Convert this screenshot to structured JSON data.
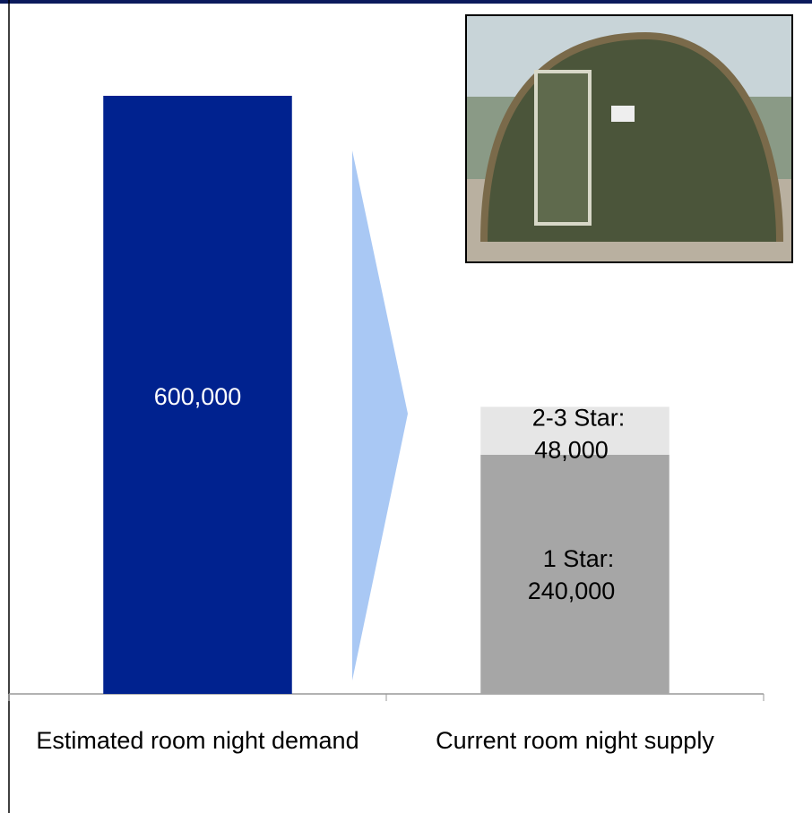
{
  "chart_data": {
    "type": "stacked-bar",
    "categories": [
      "Estimated room night demand",
      "Current room night supply"
    ],
    "series": [
      {
        "color": "#00228f",
        "values": [
          600000,
          null
        ],
        "value_labels": [
          "600,000",
          null
        ]
      },
      {
        "name": "1 Star:",
        "color": "#a6a6a6",
        "values": [
          null,
          240000
        ],
        "value_labels": [
          null,
          "240,000"
        ]
      },
      {
        "name": "2-3 Star:",
        "color": "#e6e6e6",
        "values": [
          null,
          48000
        ],
        "value_labels": [
          null,
          "48,000"
        ]
      }
    ]
  }
}
